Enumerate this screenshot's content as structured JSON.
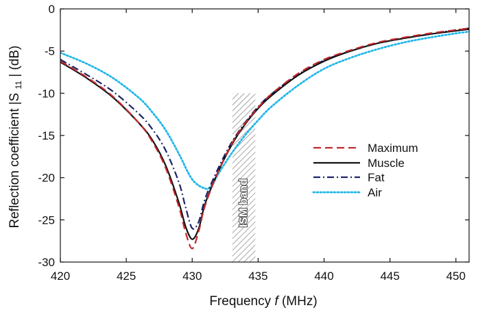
{
  "chart_data": {
    "type": "line",
    "xlabel": "Frequency",
    "xlabel_symbol": "f",
    "xlabel_unit": "(MHz)",
    "ylabel": "Reflection coefficient |S",
    "ylabel_sub": "11",
    "ylabel_unit": "| (dB)",
    "xlim": [
      420,
      451
    ],
    "ylim": [
      -30,
      0
    ],
    "xticks": [
      420,
      425,
      430,
      435,
      440,
      445,
      450
    ],
    "yticks": [
      0,
      -5,
      -10,
      -15,
      -20,
      -25,
      -30
    ],
    "grid": false,
    "legend_position": "center-right",
    "annotation": {
      "text": "ISM band",
      "x_range": [
        433.05,
        434.79
      ],
      "y_range": [
        -30,
        -10
      ],
      "style": "hatched"
    },
    "series": [
      {
        "name": "Maximum",
        "color": "#c1272d",
        "dash": "dashed",
        "x": [
          420,
          422,
          424,
          426,
          427,
          428,
          429,
          429.5,
          430,
          430.5,
          431,
          432,
          433,
          434,
          435,
          436,
          438,
          440,
          442,
          444,
          446,
          448,
          450,
          451
        ],
        "y": [
          -6.2,
          -8.1,
          -10.4,
          -13.6,
          -15.8,
          -18.9,
          -23.5,
          -26.5,
          -28.4,
          -26.3,
          -23.2,
          -19.2,
          -16.0,
          -13.6,
          -11.7,
          -10.1,
          -7.7,
          -6.0,
          -4.9,
          -4.0,
          -3.4,
          -2.9,
          -2.5,
          -2.3
        ]
      },
      {
        "name": "Muscle",
        "color": "#111111",
        "dash": "solid",
        "x": [
          420,
          422,
          424,
          426,
          427,
          428,
          429,
          429.5,
          430,
          430.5,
          431,
          432,
          433,
          434,
          435,
          436,
          438,
          440,
          442,
          444,
          446,
          448,
          450,
          451
        ],
        "y": [
          -6.3,
          -8.2,
          -10.5,
          -13.6,
          -15.6,
          -18.6,
          -23.0,
          -25.8,
          -27.3,
          -26.0,
          -23.0,
          -19.2,
          -16.1,
          -13.7,
          -11.8,
          -10.3,
          -7.9,
          -6.2,
          -5.0,
          -4.1,
          -3.5,
          -3.0,
          -2.6,
          -2.4
        ]
      },
      {
        "name": "Fat",
        "color": "#1b2266",
        "dash": "dashdot",
        "x": [
          420,
          422,
          424,
          426,
          427,
          428,
          429,
          429.5,
          430,
          430.5,
          431,
          432,
          433,
          434,
          435,
          436,
          438,
          440,
          442,
          444,
          446,
          448,
          450,
          451
        ],
        "y": [
          -6.0,
          -7.8,
          -9.8,
          -12.5,
          -14.3,
          -16.8,
          -20.6,
          -23.5,
          -26.0,
          -25.2,
          -22.4,
          -18.8,
          -15.8,
          -13.5,
          -11.6,
          -10.1,
          -7.8,
          -6.1,
          -5.0,
          -4.1,
          -3.5,
          -3.0,
          -2.5,
          -2.3
        ]
      },
      {
        "name": "Air",
        "color": "#1fb6e8",
        "dash": "dotted",
        "x": [
          420,
          422,
          424,
          426,
          427,
          428,
          429,
          430,
          431,
          431.5,
          432,
          433,
          434,
          435,
          436,
          438,
          440,
          442,
          444,
          446,
          448,
          450,
          451
        ],
        "y": [
          -5.2,
          -6.5,
          -8.2,
          -10.6,
          -12.3,
          -14.4,
          -17.2,
          -20.2,
          -21.3,
          -20.9,
          -19.5,
          -17.1,
          -15.0,
          -13.2,
          -11.6,
          -9.1,
          -7.1,
          -5.8,
          -4.8,
          -4.0,
          -3.4,
          -2.9,
          -2.7
        ]
      }
    ]
  }
}
